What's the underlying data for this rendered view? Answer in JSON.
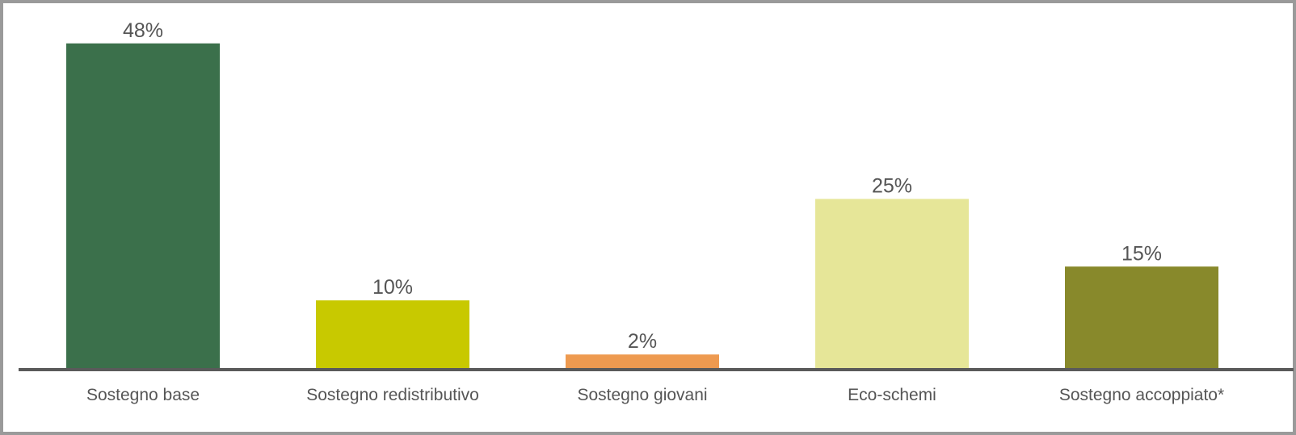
{
  "chart_data": {
    "type": "bar",
    "categories": [
      "Sostegno base",
      "Sostegno redistributivo",
      "Sostegno giovani",
      "Eco-schemi",
      "Sostegno accoppiato*"
    ],
    "values": [
      48,
      10,
      2,
      25,
      15
    ],
    "value_labels": [
      "48%",
      "10%",
      "2%",
      "25%",
      "15%"
    ],
    "colors": [
      "#3b704b",
      "#c8c900",
      "#ee9a50",
      "#e6e698",
      "#88892b"
    ],
    "ylim": [
      0,
      50
    ]
  }
}
